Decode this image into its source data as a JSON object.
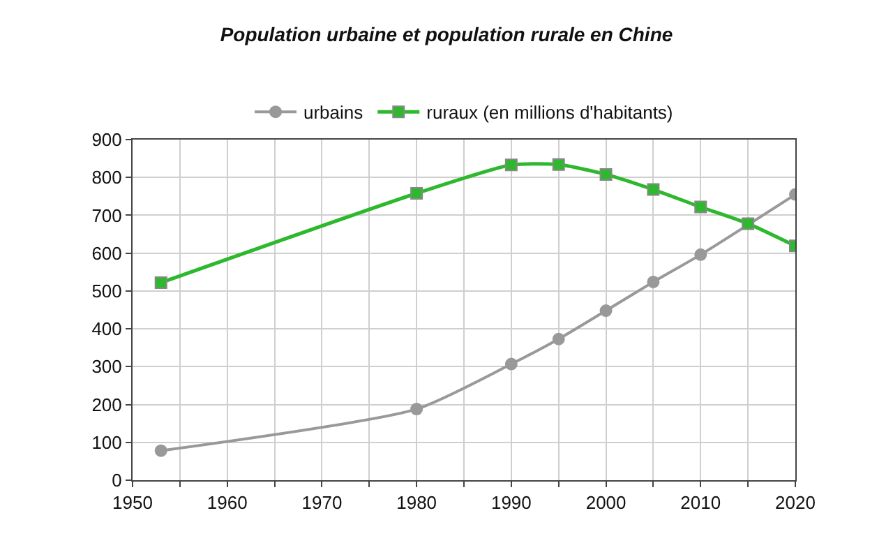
{
  "chart_data": {
    "type": "line",
    "title": "Population urbaine et population rurale en Chine",
    "x": [
      1953,
      1980,
      1990,
      1995,
      2000,
      2005,
      2010,
      2015,
      2020
    ],
    "series": [
      {
        "name": "urbains",
        "color": "#999999",
        "marker": "circle",
        "values": [
          78,
          188,
          307,
          373,
          448,
          524,
          596,
          null,
          755
        ]
      },
      {
        "name": "ruraux (en millions d'habitants)",
        "color": "#2eb82e",
        "marker": "square",
        "values": [
          522,
          758,
          833,
          834,
          808,
          768,
          722,
          678,
          619
        ]
      }
    ],
    "xlim": [
      1950,
      2020
    ],
    "xticks": [
      1950,
      {
        "value": 1955,
        "label": null
      },
      1960,
      {
        "value": 1965,
        "label": null
      },
      1970,
      {
        "value": 1975,
        "label": null
      },
      1980,
      {
        "value": 1985,
        "label": null
      },
      1990,
      {
        "value": 1995,
        "label": null
      },
      2000,
      {
        "value": 2005,
        "label": null
      },
      2010,
      {
        "value": 2015,
        "label": null
      },
      2020
    ],
    "ylim": [
      0,
      900
    ],
    "yticks": [
      0,
      100,
      200,
      300,
      400,
      500,
      600,
      700,
      800,
      900
    ],
    "grid": true,
    "legend": "top",
    "line_style": "solid"
  }
}
